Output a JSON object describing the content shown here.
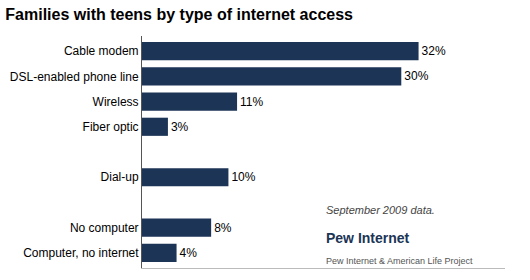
{
  "chart_data": {
    "type": "bar",
    "orientation": "horizontal",
    "title": "Families with teens by type of internet access",
    "categories": [
      "Computer, no internet",
      "No computer",
      null,
      "Dial-up",
      null,
      "Fiber optic",
      "Wireless",
      "DSL-enabled phone line",
      "Cable modem"
    ],
    "values": [
      4,
      8,
      0,
      10,
      0,
      3,
      11,
      30,
      32
    ],
    "value_labels": [
      "4%",
      "8%",
      null,
      "10%",
      null,
      "3%",
      "11%",
      "30%",
      "32%"
    ],
    "data_labels": true,
    "color": "#1c3556",
    "xlim": [
      0,
      42
    ],
    "tick_labels": "y",
    "grid": false,
    "annotations": [
      "September 2009 data.",
      "Pew Internet",
      "Pew Internet & American Life Project"
    ]
  }
}
